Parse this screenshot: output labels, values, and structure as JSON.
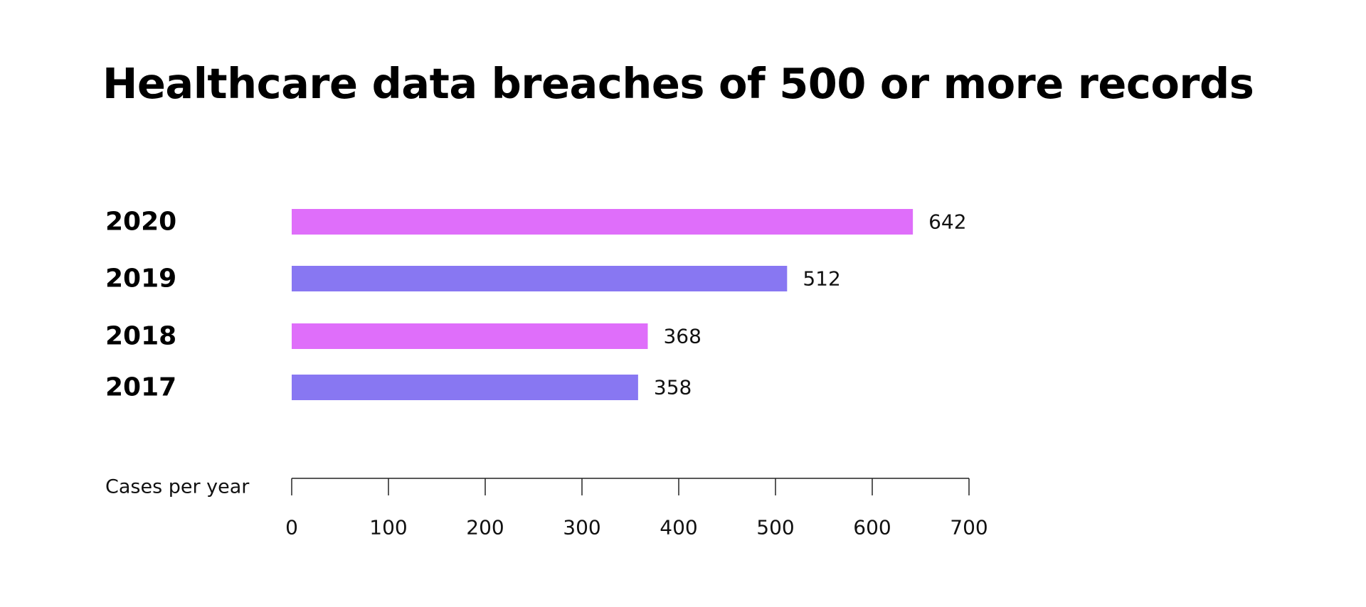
{
  "chart_data": {
    "type": "bar",
    "orientation": "horizontal",
    "title": "Healthcare data breaches of 500 or more records",
    "categories": [
      "2020",
      "2019",
      "2018",
      "2017"
    ],
    "values": [
      642,
      512,
      368,
      358
    ],
    "value_labels": [
      "642",
      "512",
      "368",
      "358"
    ],
    "bar_colors": [
      "#df6efa",
      "#8877f2",
      "#df6efa",
      "#8877f2"
    ],
    "xlabel": "Cases per year",
    "ylabel": "",
    "xlim": [
      0,
      700
    ],
    "x_ticks": [
      0,
      100,
      200,
      300,
      400,
      500,
      600,
      700
    ],
    "x_tick_labels": [
      "0",
      "100",
      "200",
      "300",
      "400",
      "500",
      "600",
      "700"
    ],
    "grid": false,
    "legend": "none"
  }
}
